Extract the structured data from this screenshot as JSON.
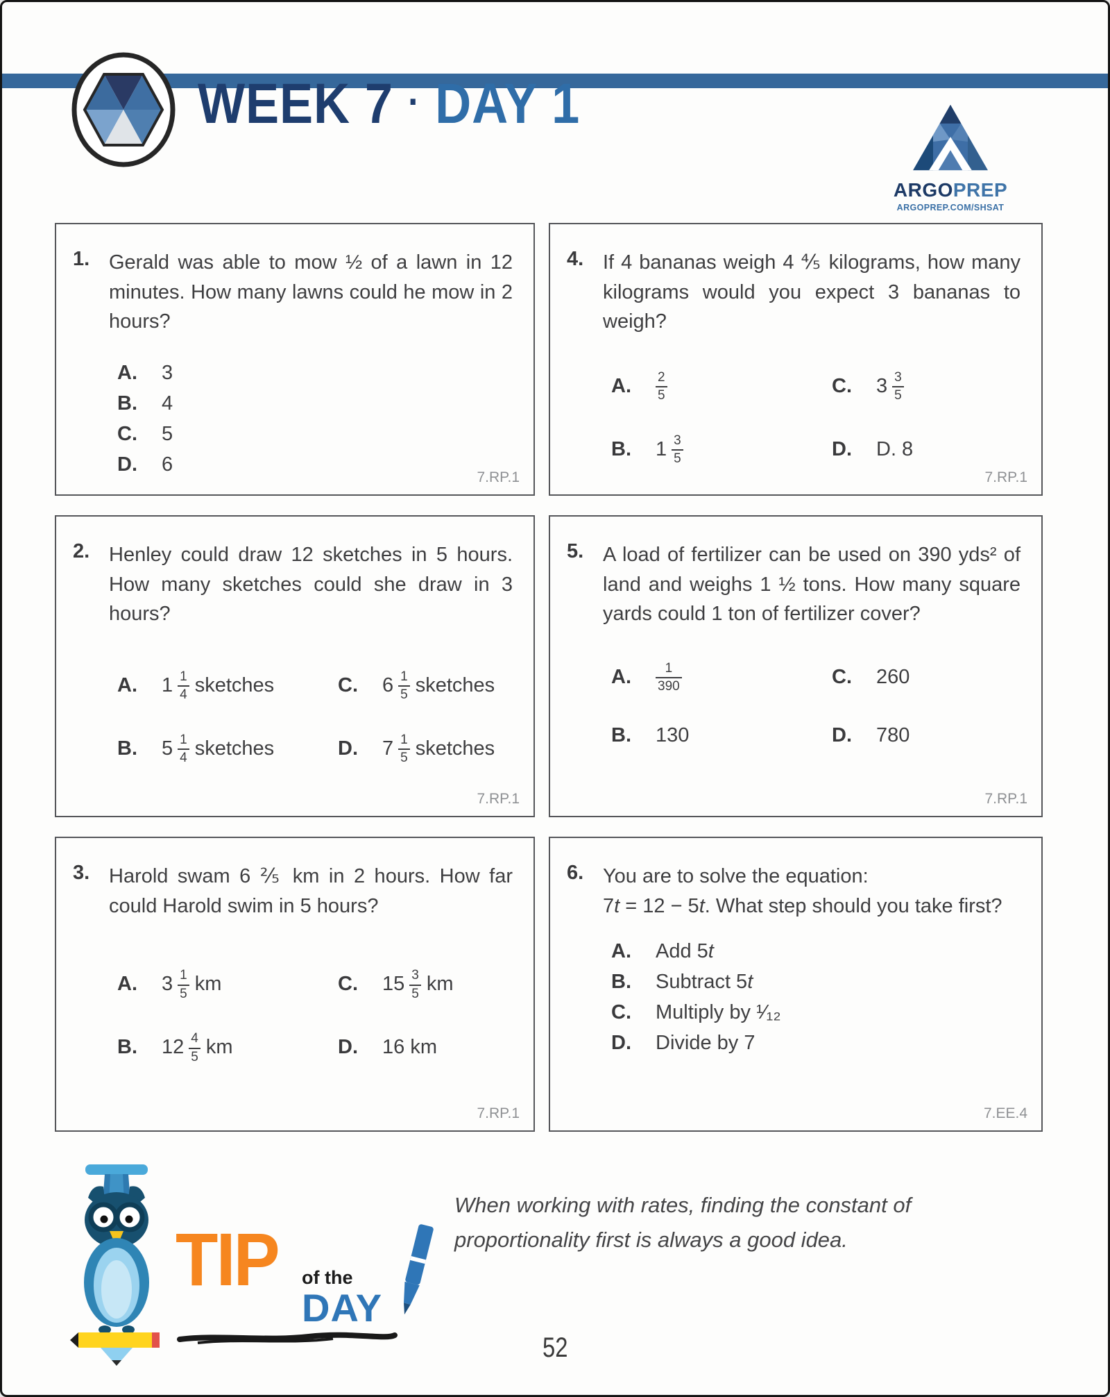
{
  "header": {
    "week": "WEEK 7",
    "separator": "·",
    "day": "DAY 1",
    "bar_color": "#36689B",
    "brand": {
      "name_primary": "ARGO",
      "name_secondary": "PREP",
      "url": "ARGOPREP.COM/SHSAT"
    }
  },
  "questions": [
    {
      "number": "1.",
      "text": "Gerald was able to mow ½ of a lawn in 12 minutes. How many lawns could he mow in 2 hours?",
      "layout": "single",
      "options": [
        {
          "label": "A.",
          "text": "3"
        },
        {
          "label": "B.",
          "text": "4"
        },
        {
          "label": "C.",
          "text": "5"
        },
        {
          "label": "D.",
          "text": "6"
        }
      ],
      "standard": "7.RP.1"
    },
    {
      "number": "4.",
      "text": "If 4 bananas weigh 4 ⅘ kilograms, how many kilograms would you expect 3 bananas to weigh?",
      "layout": "cols",
      "options": [
        {
          "label": "A.",
          "num": "2",
          "den": "5"
        },
        {
          "label": "C.",
          "whole": "3",
          "num": "3",
          "den": "5"
        },
        {
          "label": "B.",
          "whole": "1",
          "num": "3",
          "den": "5"
        },
        {
          "label": "D.",
          "text": "D. 8"
        }
      ],
      "standard": "7.RP.1"
    },
    {
      "number": "2.",
      "text": "Henley could draw 12 sketches in 5 hours. How many sketches could she draw in 3 hours?",
      "layout": "cols",
      "options": [
        {
          "label": "A.",
          "whole": "1",
          "num": "1",
          "den": "4",
          "suffix": "sketches"
        },
        {
          "label": "C.",
          "whole": "6",
          "num": "1",
          "den": "5",
          "suffix": "sketches"
        },
        {
          "label": "B.",
          "whole": "5",
          "num": "1",
          "den": "4",
          "suffix": "sketches"
        },
        {
          "label": "D.",
          "whole": "7",
          "num": "1",
          "den": "5",
          "suffix": "sketches"
        }
      ],
      "standard": "7.RP.1"
    },
    {
      "number": "5.",
      "text": "A load of fertilizer can be used on 390 yds² of land and weighs 1 ½ tons. How many square yards could 1 ton of fertilizer cover?",
      "layout": "cols",
      "options": [
        {
          "label": "A.",
          "num": "1",
          "den": "390"
        },
        {
          "label": "C.",
          "text": "260"
        },
        {
          "label": "B.",
          "text": "130"
        },
        {
          "label": "D.",
          "text": "780"
        }
      ],
      "standard": "7.RP.1"
    },
    {
      "number": "3.",
      "text": "Harold swam 6 ⅖ km in 2 hours. How far could Harold swim in 5 hours?",
      "layout": "cols",
      "options": [
        {
          "label": "A.",
          "whole": "3",
          "num": "1",
          "den": "5",
          "suffix": "km"
        },
        {
          "label": "C.",
          "whole": "15",
          "num": "3",
          "den": "5",
          "suffix": "km"
        },
        {
          "label": "B.",
          "whole": "12",
          "num": "4",
          "den": "5",
          "suffix": "km"
        },
        {
          "label": "D.",
          "text": "16 km"
        }
      ],
      "standard": "7.RP.1"
    },
    {
      "number": "6.",
      "text_runs": [
        {
          "t": "You are to solve the equation:"
        },
        {
          "br": true
        },
        {
          "t": "7"
        },
        {
          "t": "t",
          "i": true
        },
        {
          "t": " = 12 − 5"
        },
        {
          "t": "t",
          "i": true
        },
        {
          "t": ". What step should you take first?"
        }
      ],
      "layout": "single",
      "options": [
        {
          "label": "A.",
          "text_runs": [
            {
              "t": "Add 5"
            },
            {
              "t": "t",
              "i": true
            }
          ]
        },
        {
          "label": "B.",
          "text_runs": [
            {
              "t": "Subtract 5"
            },
            {
              "t": "t",
              "i": true
            }
          ]
        },
        {
          "label": "C.",
          "text": "Multiply by ¹⁄₁₂"
        },
        {
          "label": "D.",
          "text": "Divide by 7"
        }
      ],
      "standard": "7.EE.4"
    }
  ],
  "footer": {
    "tip_label_tip": "TIP",
    "tip_label_of_the": "of the",
    "tip_label_day": "DAY",
    "tip_text": "When working with rates, finding the constant of proportionality first is always a good idea.",
    "page_number": "52"
  }
}
